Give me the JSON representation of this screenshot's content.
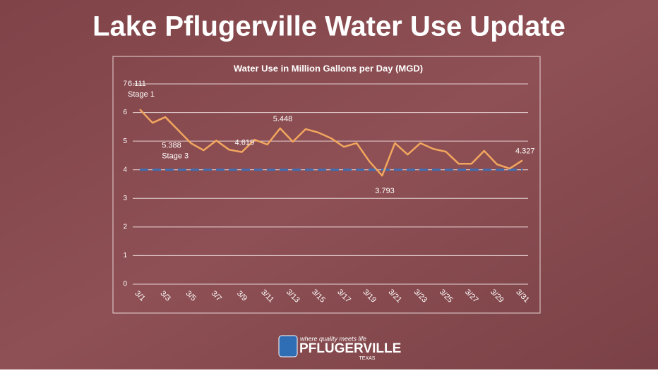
{
  "headline": "Lake Pflugerville Water Use Update",
  "logo": {
    "tagline": "where quality meets life",
    "name": "PFLUGERVILLE",
    "sub": "TEXAS"
  },
  "chart_data": {
    "type": "line",
    "title": "Water Use in Million Gallons per Day (MGD)",
    "categories": [
      "3/1",
      null,
      "3/3",
      null,
      "3/5",
      null,
      "3/7",
      null,
      "3/9",
      null,
      "3/11",
      null,
      "3/13",
      null,
      "3/15",
      null,
      "3/17",
      null,
      "3/19",
      null,
      "3/21",
      null,
      "3/23",
      null,
      "3/25",
      null,
      "3/27",
      null,
      "3/29",
      null,
      "3/31"
    ],
    "series": [
      {
        "color": "#f2a65e",
        "values": [
          6.111,
          5.64,
          5.84,
          5.388,
          4.93,
          4.68,
          5.02,
          4.7,
          4.619,
          5.05,
          4.88,
          5.448,
          4.98,
          5.42,
          5.3,
          5.1,
          4.8,
          4.93,
          4.29,
          3.793,
          4.93,
          4.53,
          4.93,
          4.73,
          4.63,
          4.21,
          4.21,
          4.66,
          4.19,
          4.04,
          4.327
        ],
        "value_labels": [
          "6.111",
          null,
          null,
          "5.388",
          null,
          null,
          null,
          null,
          "4.619",
          null,
          null,
          "5.448",
          null,
          null,
          null,
          null,
          null,
          null,
          null,
          "3.793",
          null,
          null,
          null,
          null,
          null,
          null,
          null,
          null,
          null,
          null,
          "4.327"
        ],
        "point_notes": [
          "Stage 1",
          null,
          null,
          "Stage 3",
          null,
          null,
          null,
          null,
          null,
          null,
          null,
          null,
          null,
          null,
          null,
          null,
          null,
          null,
          null,
          null,
          null,
          null,
          null,
          null,
          null,
          null,
          null,
          null,
          null,
          null,
          null
        ]
      }
    ],
    "reference_line": {
      "value": 4,
      "color": "#3f6fb3"
    },
    "ylim": [
      0,
      7
    ],
    "yticks": [
      0,
      1,
      2,
      3,
      4,
      5,
      6,
      7
    ],
    "grid": true
  }
}
